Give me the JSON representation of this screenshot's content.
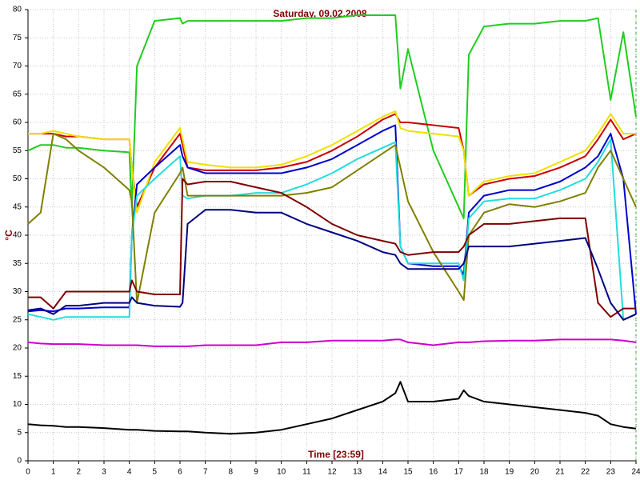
{
  "chart_data": {
    "type": "line",
    "title": "Saturday, 09.02.2008",
    "y_label": "°C",
    "x_label": "Time [23:59]",
    "xlim": [
      0,
      24
    ],
    "ylim": [
      0,
      80
    ],
    "xticks": [
      0,
      1,
      2,
      3,
      4,
      5,
      6,
      7,
      8,
      9,
      10,
      11,
      12,
      13,
      14,
      15,
      16,
      17,
      18,
      19,
      20,
      21,
      22,
      23,
      24
    ],
    "yticks": [
      0,
      5,
      10,
      15,
      20,
      25,
      30,
      35,
      40,
      45,
      50,
      55,
      60,
      65,
      70,
      75,
      80
    ],
    "grid": true,
    "x": [
      0,
      0.5,
      1,
      1.5,
      2,
      3,
      4,
      4.1,
      4.3,
      5,
      6,
      6.1,
      6.3,
      7,
      8,
      9,
      10,
      11,
      12,
      13,
      14,
      14.5,
      14.7,
      15,
      16,
      17,
      17.2,
      17.4,
      18,
      19,
      20,
      21,
      22,
      22.5,
      23,
      23.5,
      24
    ],
    "series": [
      {
        "color": "#22cc22",
        "values": [
          55,
          56,
          56,
          55.5,
          55.5,
          55,
          54.7,
          45,
          70,
          78,
          78.5,
          77.5,
          78,
          78,
          78,
          78,
          78,
          78.5,
          78.5,
          79,
          79,
          79,
          66,
          73,
          55,
          45,
          43,
          72,
          77,
          77.5,
          77.5,
          78,
          78,
          78.5,
          64,
          76,
          61
        ]
      },
      {
        "color": "#cc0000",
        "values": [
          58,
          58,
          58,
          57.5,
          57.5,
          57,
          57,
          52,
          45,
          52,
          58,
          56,
          52,
          51.5,
          51.5,
          51.5,
          52,
          53,
          55,
          57.5,
          60.5,
          61.5,
          60,
          60,
          59.5,
          59,
          55,
          47,
          49,
          50,
          50.5,
          52,
          54,
          57,
          60.5,
          57,
          58
        ]
      },
      {
        "color": "#f0e000",
        "values": [
          58,
          58,
          58.5,
          58,
          57.5,
          57,
          57,
          52,
          44,
          53,
          59,
          57,
          53,
          52.5,
          52,
          52,
          52.5,
          54,
          56,
          58.5,
          61,
          62,
          59,
          58.5,
          58,
          57.5,
          55,
          47,
          49.5,
          50.5,
          51,
          53,
          55,
          58,
          61.5,
          58,
          58
        ]
      },
      {
        "color": "#0000cc",
        "values": [
          26.5,
          26.7,
          26.5,
          27,
          27,
          27.2,
          27.2,
          40,
          49,
          52,
          56,
          54,
          52,
          51,
          51,
          51,
          51,
          52,
          53.5,
          56,
          58.5,
          59.5,
          38,
          35,
          34.5,
          34.5,
          33,
          44,
          47,
          48,
          48,
          49.5,
          52,
          54,
          58,
          50,
          26
        ]
      },
      {
        "color": "#22dddd",
        "values": [
          26,
          25.5,
          25,
          25.5,
          25.5,
          25.5,
          25.5,
          40,
          47,
          50,
          54,
          47,
          46.5,
          47,
          47,
          47.5,
          47.5,
          49,
          51,
          53.5,
          55.5,
          56.5,
          38,
          35,
          35,
          35,
          32,
          43,
          46,
          46.5,
          46.5,
          48,
          50,
          53,
          57,
          25,
          26
        ]
      },
      {
        "color": "#808000",
        "values": [
          42,
          44,
          58,
          57,
          55,
          52,
          48,
          46,
          28,
          44,
          51,
          52,
          47,
          47,
          47,
          47,
          47,
          47.5,
          48.5,
          51.5,
          54.5,
          56,
          52,
          46,
          37,
          30,
          28.5,
          40,
          44,
          45.5,
          45,
          46,
          47.5,
          52,
          55,
          50,
          45
        ]
      },
      {
        "color": "#800000",
        "values": [
          29,
          29,
          27,
          30,
          30,
          30,
          30,
          32,
          30,
          29.5,
          29.5,
          50,
          49,
          49.5,
          49.5,
          48.5,
          47.5,
          45,
          42,
          40,
          39,
          38.5,
          37,
          36.5,
          37,
          37,
          38,
          40,
          42,
          42,
          42.5,
          43,
          43,
          28,
          25.5,
          27,
          27
        ]
      },
      {
        "color": "#000080",
        "values": [
          26.7,
          27,
          26,
          27.5,
          27.5,
          28,
          28,
          29,
          28,
          27.5,
          27.3,
          28,
          42,
          44.5,
          44.5,
          44,
          44,
          42,
          40.5,
          39,
          37,
          36.5,
          35,
          34,
          34,
          34,
          35,
          38,
          38,
          38,
          38.5,
          39,
          39.5,
          34,
          28,
          25,
          26
        ]
      },
      {
        "color": "#cc00cc",
        "values": [
          21,
          20.8,
          20.7,
          20.7,
          20.7,
          20.5,
          20.5,
          20.5,
          20.5,
          20.3,
          20.3,
          20.3,
          20.3,
          20.5,
          20.5,
          20.5,
          21,
          21,
          21.3,
          21.3,
          21.3,
          21.5,
          21.5,
          21,
          20.5,
          21,
          21,
          21,
          21.2,
          21.3,
          21.3,
          21.5,
          21.5,
          21.5,
          21.5,
          21.3,
          21
        ]
      },
      {
        "color": "#000000",
        "values": [
          6.5,
          6.3,
          6.2,
          6,
          6,
          5.8,
          5.5,
          5.5,
          5.5,
          5.3,
          5.2,
          5.2,
          5.2,
          5,
          4.8,
          5,
          5.5,
          6.5,
          7.5,
          9,
          10.5,
          12,
          14,
          10.5,
          10.5,
          11,
          12.5,
          11.5,
          10.5,
          10,
          9.5,
          9,
          8.5,
          8,
          6.5,
          6,
          5.7
        ]
      }
    ]
  }
}
